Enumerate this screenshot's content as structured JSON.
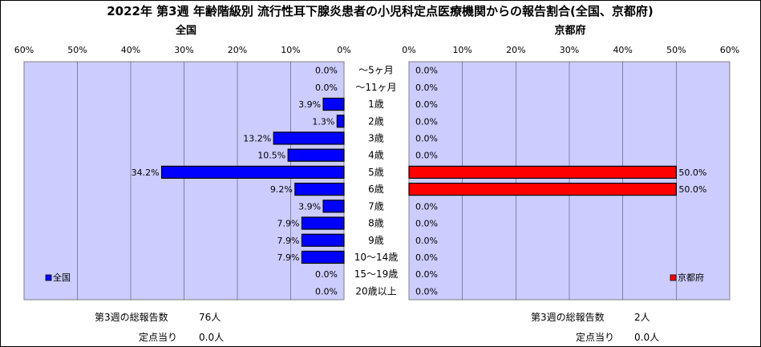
{
  "title": "2022年 第3週 年齢階級別 流行性耳下腺炎患者の小児科定点医療機関からの報告割合(全国、京都府)",
  "colors": {
    "plot_bg": "#ccccff",
    "grid": "#000000",
    "bar_left": "#0000ff",
    "bar_right": "#ff0000",
    "bar_edge": "#000000",
    "outer_border": "#000000"
  },
  "chart_data": [
    {
      "type": "bar",
      "orientation": "horizontal",
      "direction": "reversed",
      "subtitle": "全国",
      "legend": "全国",
      "legend_position": "bottom-left",
      "xlim": [
        0,
        60
      ],
      "tick_labels": [
        "60%",
        "50%",
        "40%",
        "30%",
        "20%",
        "10%",
        "0%"
      ],
      "categories": [
        "～5ヶ月",
        "～11ヶ月",
        "1歳",
        "2歳",
        "3歳",
        "4歳",
        "5歳",
        "6歳",
        "7歳",
        "8歳",
        "9歳",
        "10～14歳",
        "15～19歳",
        "20歳以上"
      ],
      "values": [
        0.0,
        0.0,
        3.9,
        1.3,
        13.2,
        10.5,
        34.2,
        9.2,
        3.9,
        7.9,
        7.9,
        7.9,
        0.0,
        0.0
      ],
      "value_labels": [
        "0.0%",
        "0.0%",
        "3.9%",
        "1.3%",
        "13.2%",
        "10.5%",
        "34.2%",
        "9.2%",
        "3.9%",
        "7.9%",
        "7.9%",
        "7.9%",
        "0.0%",
        "0.0%"
      ]
    },
    {
      "type": "bar",
      "orientation": "horizontal",
      "subtitle": "京都府",
      "legend": "京都府",
      "legend_position": "bottom-right",
      "xlim": [
        0,
        60
      ],
      "tick_labels": [
        "0%",
        "10%",
        "20%",
        "30%",
        "40%",
        "50%",
        "60%"
      ],
      "categories": [
        "～5ヶ月",
        "～11ヶ月",
        "1歳",
        "2歳",
        "3歳",
        "4歳",
        "5歳",
        "6歳",
        "7歳",
        "8歳",
        "9歳",
        "10～14歳",
        "15～19歳",
        "20歳以上"
      ],
      "values": [
        0.0,
        0.0,
        0.0,
        0.0,
        0.0,
        0.0,
        50.0,
        50.0,
        0.0,
        0.0,
        0.0,
        0.0,
        0.0,
        0.0
      ],
      "value_labels": [
        "0.0%",
        "0.0%",
        "0.0%",
        "0.0%",
        "0.0%",
        "0.0%",
        "50.0%",
        "50.0%",
        "0.0%",
        "0.0%",
        "0.0%",
        "0.0%",
        "0.0%",
        "0.0%"
      ]
    }
  ],
  "footer": {
    "left": {
      "total_label": "第3週の総報告数",
      "total_value": "76人",
      "per_label": "定点当り",
      "per_value": "0.0人"
    },
    "right": {
      "total_label": "第3週の総報告数",
      "total_value": "2人",
      "per_label": "定点当り",
      "per_value": "0.0人"
    }
  }
}
